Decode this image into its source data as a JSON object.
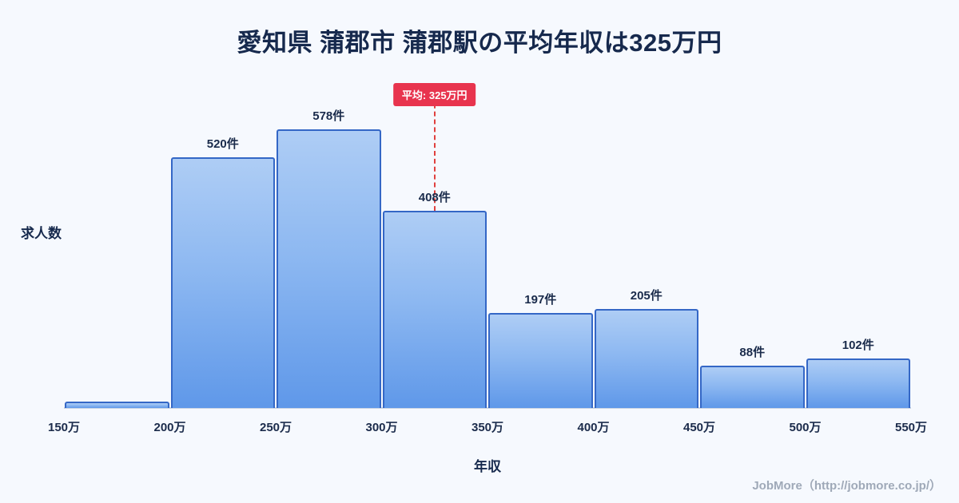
{
  "page": {
    "background": "#f6f9fe",
    "footer": "JobMore（http://jobmore.co.jp/）"
  },
  "chart_data": {
    "type": "bar",
    "title": "愛知県 蒲郡市 蒲郡駅の平均年収は325万円",
    "xlabel": "年収",
    "ylabel": "求人数",
    "x_ticks": [
      "150万",
      "200万",
      "250万",
      "300万",
      "350万",
      "400万",
      "450万",
      "500万",
      "550万"
    ],
    "x_range_man": [
      150,
      550
    ],
    "ylim": [
      0,
      680
    ],
    "grid": false,
    "legend": "none",
    "bins": [
      {
        "range": "150万-200万",
        "value": 13,
        "label": ""
      },
      {
        "range": "200万-250万",
        "value": 520,
        "label": "520件"
      },
      {
        "range": "250万-300万",
        "value": 578,
        "label": "578件"
      },
      {
        "range": "300万-350万",
        "value": 408,
        "label": "408件"
      },
      {
        "range": "350万-400万",
        "value": 197,
        "label": "197件"
      },
      {
        "range": "400万-450万",
        "value": 205,
        "label": "205件"
      },
      {
        "range": "450万-500万",
        "value": 88,
        "label": "88件"
      },
      {
        "range": "500万-550万",
        "value": 102,
        "label": "102件"
      }
    ],
    "average": {
      "value_man": 325,
      "label": "平均: 325万円"
    },
    "colors": {
      "bar_top": "#aecdf5",
      "bar_bottom": "#5f98e9",
      "bar_border": "#3467c6",
      "average_line": "#e0403e",
      "badge_bg": "#e8344e",
      "title_text": "#16294d",
      "footer_text": "#9fa9b8"
    }
  }
}
